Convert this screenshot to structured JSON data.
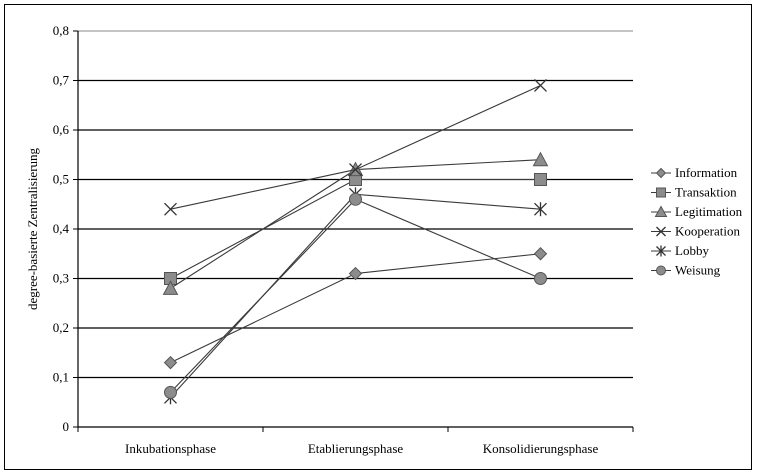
{
  "chart_data": {
    "type": "line",
    "title": "",
    "xlabel": "",
    "ylabel": "degree-basierte Zentralisierung",
    "categories": [
      "Inkubationsphase",
      "Etablierungsphase",
      "Konsolidierungsphase"
    ],
    "ylim": [
      0,
      0.8
    ],
    "yticks": [
      "0",
      "0,1",
      "0,2",
      "0,3",
      "0,4",
      "0,5",
      "0,6",
      "0,7",
      "0,8"
    ],
    "grid": "horizontal",
    "legend_position": "right",
    "series": [
      {
        "name": "Information",
        "marker": "diamond",
        "values": [
          0.13,
          0.31,
          0.35
        ]
      },
      {
        "name": "Transaktion",
        "marker": "square",
        "values": [
          0.3,
          0.5,
          0.5
        ]
      },
      {
        "name": "Legitimation",
        "marker": "triangle",
        "values": [
          0.28,
          0.52,
          0.54
        ]
      },
      {
        "name": "Kooperation",
        "marker": "x",
        "values": [
          0.44,
          0.52,
          0.69
        ]
      },
      {
        "name": "Lobby",
        "marker": "star",
        "values": [
          0.06,
          0.47,
          0.44
        ]
      },
      {
        "name": "Weisung",
        "marker": "circle",
        "values": [
          0.07,
          0.46,
          0.3
        ]
      }
    ],
    "colors": {
      "line": "#3a3a3a",
      "marker_fill": "#8c8c8c",
      "marker_stroke": "#555555",
      "grid": "#000000"
    }
  }
}
